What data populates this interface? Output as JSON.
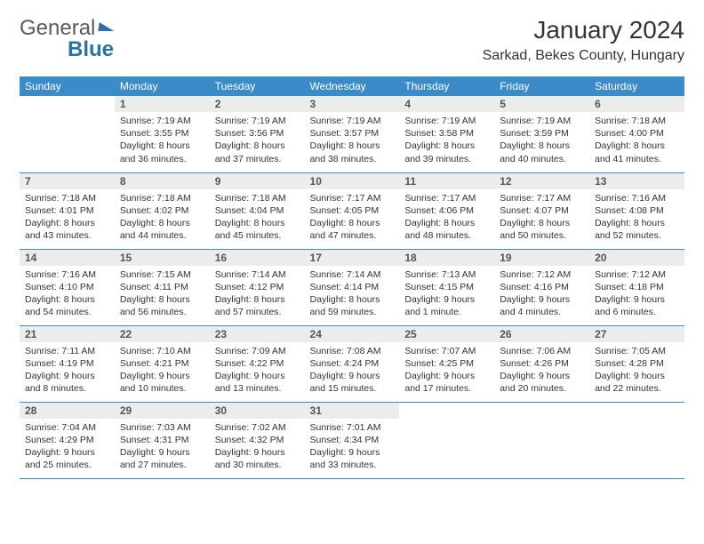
{
  "brand": {
    "part1": "General",
    "part2": "Blue"
  },
  "title": "January 2024",
  "location": "Sarkad, Bekes County, Hungary",
  "header_bg": "#3b8bc8",
  "header_text": "#ffffff",
  "daynum_bg": "#ececec",
  "row_border": "#3b8bc8",
  "weekdays": [
    "Sunday",
    "Monday",
    "Tuesday",
    "Wednesday",
    "Thursday",
    "Friday",
    "Saturday"
  ],
  "weeks": [
    [
      {
        "n": "",
        "sunrise": "",
        "sunset": "",
        "day": ""
      },
      {
        "n": "1",
        "sunrise": "Sunrise: 7:19 AM",
        "sunset": "Sunset: 3:55 PM",
        "day": "Daylight: 8 hours and 36 minutes."
      },
      {
        "n": "2",
        "sunrise": "Sunrise: 7:19 AM",
        "sunset": "Sunset: 3:56 PM",
        "day": "Daylight: 8 hours and 37 minutes."
      },
      {
        "n": "3",
        "sunrise": "Sunrise: 7:19 AM",
        "sunset": "Sunset: 3:57 PM",
        "day": "Daylight: 8 hours and 38 minutes."
      },
      {
        "n": "4",
        "sunrise": "Sunrise: 7:19 AM",
        "sunset": "Sunset: 3:58 PM",
        "day": "Daylight: 8 hours and 39 minutes."
      },
      {
        "n": "5",
        "sunrise": "Sunrise: 7:19 AM",
        "sunset": "Sunset: 3:59 PM",
        "day": "Daylight: 8 hours and 40 minutes."
      },
      {
        "n": "6",
        "sunrise": "Sunrise: 7:18 AM",
        "sunset": "Sunset: 4:00 PM",
        "day": "Daylight: 8 hours and 41 minutes."
      }
    ],
    [
      {
        "n": "7",
        "sunrise": "Sunrise: 7:18 AM",
        "sunset": "Sunset: 4:01 PM",
        "day": "Daylight: 8 hours and 43 minutes."
      },
      {
        "n": "8",
        "sunrise": "Sunrise: 7:18 AM",
        "sunset": "Sunset: 4:02 PM",
        "day": "Daylight: 8 hours and 44 minutes."
      },
      {
        "n": "9",
        "sunrise": "Sunrise: 7:18 AM",
        "sunset": "Sunset: 4:04 PM",
        "day": "Daylight: 8 hours and 45 minutes."
      },
      {
        "n": "10",
        "sunrise": "Sunrise: 7:17 AM",
        "sunset": "Sunset: 4:05 PM",
        "day": "Daylight: 8 hours and 47 minutes."
      },
      {
        "n": "11",
        "sunrise": "Sunrise: 7:17 AM",
        "sunset": "Sunset: 4:06 PM",
        "day": "Daylight: 8 hours and 48 minutes."
      },
      {
        "n": "12",
        "sunrise": "Sunrise: 7:17 AM",
        "sunset": "Sunset: 4:07 PM",
        "day": "Daylight: 8 hours and 50 minutes."
      },
      {
        "n": "13",
        "sunrise": "Sunrise: 7:16 AM",
        "sunset": "Sunset: 4:08 PM",
        "day": "Daylight: 8 hours and 52 minutes."
      }
    ],
    [
      {
        "n": "14",
        "sunrise": "Sunrise: 7:16 AM",
        "sunset": "Sunset: 4:10 PM",
        "day": "Daylight: 8 hours and 54 minutes."
      },
      {
        "n": "15",
        "sunrise": "Sunrise: 7:15 AM",
        "sunset": "Sunset: 4:11 PM",
        "day": "Daylight: 8 hours and 56 minutes."
      },
      {
        "n": "16",
        "sunrise": "Sunrise: 7:14 AM",
        "sunset": "Sunset: 4:12 PM",
        "day": "Daylight: 8 hours and 57 minutes."
      },
      {
        "n": "17",
        "sunrise": "Sunrise: 7:14 AM",
        "sunset": "Sunset: 4:14 PM",
        "day": "Daylight: 8 hours and 59 minutes."
      },
      {
        "n": "18",
        "sunrise": "Sunrise: 7:13 AM",
        "sunset": "Sunset: 4:15 PM",
        "day": "Daylight: 9 hours and 1 minute."
      },
      {
        "n": "19",
        "sunrise": "Sunrise: 7:12 AM",
        "sunset": "Sunset: 4:16 PM",
        "day": "Daylight: 9 hours and 4 minutes."
      },
      {
        "n": "20",
        "sunrise": "Sunrise: 7:12 AM",
        "sunset": "Sunset: 4:18 PM",
        "day": "Daylight: 9 hours and 6 minutes."
      }
    ],
    [
      {
        "n": "21",
        "sunrise": "Sunrise: 7:11 AM",
        "sunset": "Sunset: 4:19 PM",
        "day": "Daylight: 9 hours and 8 minutes."
      },
      {
        "n": "22",
        "sunrise": "Sunrise: 7:10 AM",
        "sunset": "Sunset: 4:21 PM",
        "day": "Daylight: 9 hours and 10 minutes."
      },
      {
        "n": "23",
        "sunrise": "Sunrise: 7:09 AM",
        "sunset": "Sunset: 4:22 PM",
        "day": "Daylight: 9 hours and 13 minutes."
      },
      {
        "n": "24",
        "sunrise": "Sunrise: 7:08 AM",
        "sunset": "Sunset: 4:24 PM",
        "day": "Daylight: 9 hours and 15 minutes."
      },
      {
        "n": "25",
        "sunrise": "Sunrise: 7:07 AM",
        "sunset": "Sunset: 4:25 PM",
        "day": "Daylight: 9 hours and 17 minutes."
      },
      {
        "n": "26",
        "sunrise": "Sunrise: 7:06 AM",
        "sunset": "Sunset: 4:26 PM",
        "day": "Daylight: 9 hours and 20 minutes."
      },
      {
        "n": "27",
        "sunrise": "Sunrise: 7:05 AM",
        "sunset": "Sunset: 4:28 PM",
        "day": "Daylight: 9 hours and 22 minutes."
      }
    ],
    [
      {
        "n": "28",
        "sunrise": "Sunrise: 7:04 AM",
        "sunset": "Sunset: 4:29 PM",
        "day": "Daylight: 9 hours and 25 minutes."
      },
      {
        "n": "29",
        "sunrise": "Sunrise: 7:03 AM",
        "sunset": "Sunset: 4:31 PM",
        "day": "Daylight: 9 hours and 27 minutes."
      },
      {
        "n": "30",
        "sunrise": "Sunrise: 7:02 AM",
        "sunset": "Sunset: 4:32 PM",
        "day": "Daylight: 9 hours and 30 minutes."
      },
      {
        "n": "31",
        "sunrise": "Sunrise: 7:01 AM",
        "sunset": "Sunset: 4:34 PM",
        "day": "Daylight: 9 hours and 33 minutes."
      },
      {
        "n": "",
        "sunrise": "",
        "sunset": "",
        "day": ""
      },
      {
        "n": "",
        "sunrise": "",
        "sunset": "",
        "day": ""
      },
      {
        "n": "",
        "sunrise": "",
        "sunset": "",
        "day": ""
      }
    ]
  ]
}
